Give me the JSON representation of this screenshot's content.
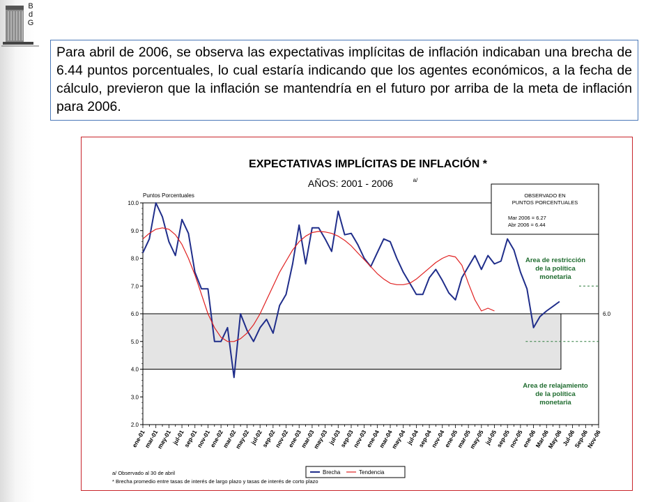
{
  "logo": {
    "letters": [
      "B",
      "d",
      "G"
    ]
  },
  "intro_text": "Para abril de 2006, se observa las expectativas implícitas de inflación indicaban una brecha de 6.44 puntos porcentuales, lo cual estaría indicando que los agentes económicos, a la fecha de cálculo, previeron que la inflación se mantendría en el futuro por arriba de la meta de inflación para 2006.",
  "chart_data": {
    "type": "line",
    "title": "EXPECTATIVAS IMPLÍCITAS DE INFLACIÓN *",
    "subtitle": "AÑOS: 2001 - 2006",
    "subtitle_note": "a/",
    "ylabel": "Puntos Porcentuales",
    "ylim": [
      2.0,
      10.0
    ],
    "yticks": [
      "10.0",
      "9.0",
      "8.0",
      "7.0",
      "6.0",
      "5.0",
      "4.0",
      "3.0",
      "2.0"
    ],
    "x_tick_labels": [
      "ene-01",
      "mar-01",
      "may-01",
      "jul-01",
      "sep-01",
      "nov-01",
      "ene-02",
      "mar-02",
      "may-02",
      "jul-02",
      "sep-02",
      "nov-02",
      "ene-03",
      "mar-03",
      "may-03",
      "jul-03",
      "sep-03",
      "nov-03",
      "ene-04",
      "mar-04",
      "may-04",
      "jul-04",
      "sep-04",
      "nov-04",
      "ene-05",
      "mar-05",
      "may-05",
      "jul-05",
      "sep-05",
      "nov-05",
      "ene-06",
      "Mar-06",
      "May-06",
      "Jul-06",
      "Sep-06",
      "Nov-06"
    ],
    "band": {
      "low": 4.0,
      "high": 6.0
    },
    "meta_line": {
      "value": 6.0,
      "label": "6.0"
    },
    "restriction_line": 7.0,
    "relax_line": 5.0,
    "series": [
      {
        "name": "Brecha",
        "color": "#1f2d8a",
        "values": [
          8.2,
          8.7,
          10.0,
          9.5,
          8.6,
          8.1,
          9.4,
          8.9,
          7.5,
          6.9,
          6.9,
          5.0,
          5.0,
          5.5,
          3.7,
          6.0,
          5.4,
          5.0,
          5.5,
          5.8,
          5.3,
          6.3,
          6.7,
          7.8,
          9.2,
          7.8,
          9.1,
          9.1,
          8.7,
          8.25,
          9.7,
          8.85,
          8.9,
          8.5,
          8.0,
          7.7,
          8.2,
          8.7,
          8.6,
          8.0,
          7.5,
          7.1,
          6.7,
          6.7,
          7.3,
          7.6,
          7.2,
          6.75,
          6.5,
          7.3,
          7.7,
          8.1,
          7.6,
          8.1,
          7.8,
          7.9,
          8.7,
          8.3,
          7.5,
          6.9,
          5.5,
          5.9,
          6.1,
          6.27,
          6.44
        ]
      },
      {
        "name": "Tendencia",
        "color": "#e02020",
        "values": [
          8.7,
          8.9,
          9.05,
          9.1,
          9.05,
          8.85,
          8.5,
          8.0,
          7.4,
          6.7,
          6.0,
          5.5,
          5.15,
          5.0,
          5.0,
          5.1,
          5.3,
          5.6,
          6.0,
          6.5,
          7.0,
          7.5,
          7.9,
          8.3,
          8.6,
          8.8,
          8.93,
          8.97,
          8.95,
          8.9,
          8.8,
          8.65,
          8.45,
          8.2,
          7.95,
          7.7,
          7.45,
          7.25,
          7.1,
          7.05,
          7.05,
          7.1,
          7.25,
          7.45,
          7.65,
          7.85,
          8.0,
          8.1,
          8.05,
          7.75,
          7.1,
          6.5,
          6.1,
          6.2,
          6.1
        ]
      }
    ],
    "observed_box": {
      "title_line1": "OBSERVADO EN",
      "title_line2": "PUNTOS PORCENTUALES",
      "row1": "Mar 2006  =  6.27",
      "row2": "Abr 2006  =  6.44"
    },
    "restriction_area_label": [
      "Area de restricción",
      "de la política",
      "monetaria"
    ],
    "relax_area_label": [
      "Area de relajamiento",
      "de la política",
      "monetaria"
    ],
    "footnotes": [
      "a/  Observado al 30 de abril",
      "*    Brecha promedio entre tasas de interés de largo plazo y tasas de interés de corto plazo"
    ],
    "legend_position": "bottom-center"
  }
}
